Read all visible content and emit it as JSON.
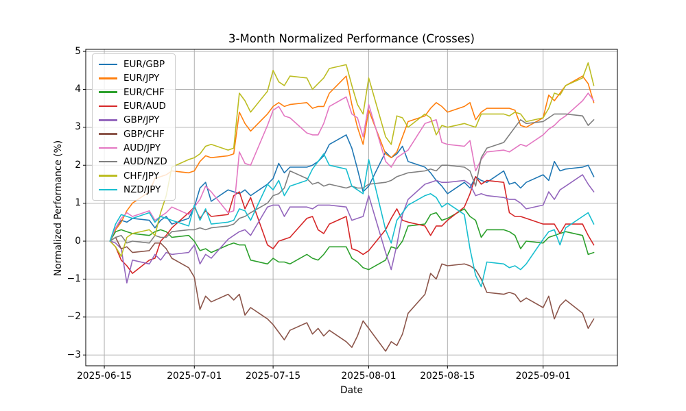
{
  "chart_data": {
    "type": "line",
    "title": "3-Month Normalized Performance (Crosses)",
    "xlabel": "Date",
    "ylabel": "Normalized Performance (%)",
    "grid": true,
    "legend_position": "upper left",
    "colors": {
      "background": "#ffffff",
      "grid": "#b0b0b0",
      "spine": "#000000",
      "legend_border": "#cccccc"
    },
    "x_origin_date": "2025-06-15",
    "xlim_days": [
      -3.3,
      91.2
    ],
    "ylim": [
      -3.285,
      5.055
    ],
    "x_ticks": [
      "2025-06-15",
      "2025-07-01",
      "2025-07-15",
      "2025-08-01",
      "2025-08-15",
      "2025-09-01"
    ],
    "x_tick_labels": [
      "2025-06-15",
      "2025-07-01",
      "2025-07-15",
      "2025-08-01",
      "2025-08-15",
      "2025-09-01"
    ],
    "y_ticks": [
      -3,
      -2,
      -1,
      0,
      1,
      2,
      3,
      4,
      5
    ],
    "y_tick_labels": [
      "−3",
      "−2",
      "−1",
      "0",
      "1",
      "2",
      "3",
      "4",
      "5"
    ],
    "dates": [
      "2025-06-16",
      "2025-06-17",
      "2025-06-18",
      "2025-06-19",
      "2025-06-20",
      "2025-06-23",
      "2025-06-24",
      "2025-06-25",
      "2025-06-26",
      "2025-06-27",
      "2025-06-30",
      "2025-07-01",
      "2025-07-02",
      "2025-07-03",
      "2025-07-04",
      "2025-07-07",
      "2025-07-08",
      "2025-07-09",
      "2025-07-10",
      "2025-07-11",
      "2025-07-14",
      "2025-07-15",
      "2025-07-16",
      "2025-07-17",
      "2025-07-18",
      "2025-07-21",
      "2025-07-22",
      "2025-07-23",
      "2025-07-24",
      "2025-07-25",
      "2025-07-28",
      "2025-07-29",
      "2025-07-30",
      "2025-07-31",
      "2025-08-01",
      "2025-08-04",
      "2025-08-05",
      "2025-08-06",
      "2025-08-07",
      "2025-08-08",
      "2025-08-11",
      "2025-08-12",
      "2025-08-13",
      "2025-08-14",
      "2025-08-15",
      "2025-08-18",
      "2025-08-19",
      "2025-08-20",
      "2025-08-21",
      "2025-08-22",
      "2025-08-25",
      "2025-08-26",
      "2025-08-27",
      "2025-08-28",
      "2025-08-29",
      "2025-09-01",
      "2025-09-02",
      "2025-09-03",
      "2025-09-04",
      "2025-09-05",
      "2025-09-08",
      "2025-09-09",
      "2025-09-10"
    ],
    "series": [
      {
        "name": "EUR/GBP",
        "color": "#1f77b4",
        "values": [
          0,
          0.35,
          0.55,
          0.5,
          0.6,
          0.55,
          0.35,
          0.55,
          0.65,
          0.45,
          0.6,
          0.9,
          1.4,
          1.55,
          1.05,
          1.35,
          1.3,
          1.25,
          1.35,
          1.2,
          1.5,
          1.65,
          2.05,
          1.8,
          1.95,
          1.95,
          2.0,
          2.1,
          2.25,
          2.55,
          2.8,
          2.45,
          1.9,
          1.3,
          1.45,
          2.35,
          2.2,
          2.3,
          2.5,
          2.1,
          1.95,
          1.8,
          1.6,
          1.45,
          1.25,
          1.55,
          1.4,
          1.7,
          1.6,
          1.55,
          1.85,
          1.5,
          1.55,
          1.4,
          1.55,
          1.75,
          1.6,
          2.1,
          1.85,
          1.9,
          1.95,
          2.0,
          1.7
        ]
      },
      {
        "name": "EUR/JPY",
        "color": "#ff7f0e",
        "values": [
          0,
          0.3,
          0.5,
          0.8,
          1.0,
          1.3,
          1.65,
          1.7,
          1.75,
          1.85,
          1.8,
          1.85,
          2.1,
          2.25,
          2.2,
          2.25,
          2.3,
          3.4,
          3.1,
          2.9,
          3.35,
          3.55,
          3.65,
          3.55,
          3.6,
          3.65,
          3.5,
          3.55,
          3.55,
          3.9,
          4.35,
          3.6,
          3.0,
          2.55,
          3.45,
          2.3,
          2.2,
          2.35,
          2.75,
          3.15,
          3.3,
          3.5,
          3.65,
          3.55,
          3.4,
          3.55,
          3.65,
          3.2,
          3.4,
          3.5,
          3.5,
          3.5,
          3.45,
          3.05,
          3.0,
          3.25,
          3.85,
          3.7,
          3.9,
          4.1,
          4.35,
          4.15,
          3.65
        ]
      },
      {
        "name": "EUR/CHF",
        "color": "#2ca02c",
        "values": [
          0,
          0.25,
          0.3,
          0.25,
          0.2,
          0.15,
          0.25,
          0.3,
          0.25,
          0.1,
          0.15,
          0.0,
          -0.25,
          -0.2,
          -0.3,
          -0.1,
          -0.05,
          -0.1,
          -0.1,
          -0.5,
          -0.6,
          -0.45,
          -0.55,
          -0.55,
          -0.6,
          -0.35,
          -0.45,
          -0.5,
          -0.35,
          -0.15,
          -0.15,
          -0.45,
          -0.55,
          -0.7,
          -0.75,
          -0.5,
          -0.15,
          -0.2,
          0.0,
          0.4,
          0.45,
          0.7,
          0.75,
          0.55,
          0.6,
          0.85,
          0.65,
          0.55,
          0.1,
          0.3,
          0.3,
          0.25,
          0.15,
          -0.2,
          0.0,
          -0.05,
          0.1,
          0.15,
          0.2,
          0.25,
          0.15,
          -0.35,
          -0.3
        ]
      },
      {
        "name": "EUR/AUD",
        "color": "#d62728",
        "values": [
          0,
          -0.15,
          -0.5,
          -0.65,
          -0.85,
          -0.5,
          -0.45,
          0.0,
          0.15,
          0.35,
          0.75,
          0.9,
          0.6,
          0.8,
          0.65,
          0.7,
          1.2,
          1.3,
          0.85,
          1.15,
          -0.1,
          -0.2,
          0.0,
          0.05,
          0.1,
          0.6,
          0.65,
          0.3,
          0.2,
          0.45,
          0.65,
          -0.2,
          -0.25,
          -0.35,
          -0.25,
          0.3,
          0.6,
          0.85,
          0.55,
          0.5,
          0.4,
          0.15,
          0.4,
          0.4,
          0.55,
          0.9,
          1.25,
          1.7,
          1.5,
          1.6,
          1.55,
          0.75,
          0.65,
          0.65,
          0.6,
          0.45,
          0.45,
          0.45,
          0.2,
          0.45,
          0.45,
          0.15,
          -0.1
        ]
      },
      {
        "name": "GBP/JPY",
        "color": "#9467bd",
        "values": [
          0,
          -0.05,
          -0.2,
          -1.1,
          -0.5,
          -0.6,
          -0.35,
          -0.5,
          -0.3,
          -0.35,
          -0.3,
          -0.1,
          -0.6,
          -0.35,
          -0.45,
          0.05,
          0.15,
          0.25,
          0.3,
          0.15,
          0.9,
          0.95,
          0.95,
          0.65,
          0.9,
          0.9,
          0.85,
          0.95,
          0.95,
          0.95,
          0.9,
          0.55,
          0.6,
          0.65,
          1.2,
          -0.3,
          -0.75,
          -0.1,
          0.7,
          1.1,
          1.5,
          1.55,
          1.6,
          1.55,
          1.55,
          1.6,
          1.5,
          1.2,
          1.25,
          1.2,
          1.15,
          1.1,
          1.1,
          1.0,
          0.85,
          0.95,
          1.3,
          1.1,
          1.35,
          1.45,
          1.75,
          1.5,
          1.3
        ]
      },
      {
        "name": "GBP/CHF",
        "color": "#8c564b",
        "values": [
          0,
          0.1,
          -0.2,
          -0.15,
          -0.3,
          -0.25,
          -0.05,
          -0.05,
          -0.2,
          -0.45,
          -0.7,
          -0.95,
          -1.8,
          -1.45,
          -1.6,
          -1.4,
          -1.55,
          -1.4,
          -1.95,
          -1.75,
          -2.05,
          -2.2,
          -2.4,
          -2.6,
          -2.35,
          -2.15,
          -2.45,
          -2.3,
          -2.5,
          -2.35,
          -2.65,
          -2.8,
          -2.5,
          -2.1,
          -2.3,
          -2.9,
          -2.65,
          -2.75,
          -2.45,
          -1.9,
          -1.4,
          -0.85,
          -1.0,
          -0.6,
          -0.65,
          -0.6,
          -0.65,
          -0.75,
          -1.0,
          -1.35,
          -1.4,
          -1.35,
          -1.4,
          -1.6,
          -1.5,
          -1.75,
          -1.45,
          -2.05,
          -1.7,
          -1.55,
          -1.9,
          -2.3,
          -2.05
        ]
      },
      {
        "name": "AUD/JPY",
        "color": "#e377c2",
        "values": [
          0,
          0.35,
          0.6,
          0.75,
          0.65,
          0.8,
          0.55,
          0.65,
          0.75,
          0.9,
          0.7,
          0.9,
          1.1,
          1.45,
          1.3,
          0.75,
          0.8,
          2.35,
          2.05,
          2.0,
          3.05,
          3.45,
          3.55,
          3.3,
          3.25,
          2.85,
          2.8,
          2.8,
          3.1,
          3.55,
          3.8,
          3.35,
          3.25,
          2.75,
          3.6,
          2.1,
          1.95,
          2.2,
          2.3,
          2.4,
          3.1,
          3.15,
          3.2,
          2.6,
          2.55,
          2.5,
          2.65,
          1.85,
          2.15,
          2.35,
          2.4,
          2.35,
          2.45,
          2.55,
          2.5,
          2.8,
          2.95,
          3.05,
          3.2,
          3.3,
          3.7,
          3.9,
          3.7
        ]
      },
      {
        "name": "AUD/NZD",
        "color": "#7f7f7f",
        "values": [
          0,
          0.1,
          0.15,
          -0.05,
          0.0,
          -0.05,
          0.15,
          0.1,
          0.1,
          0.25,
          0.3,
          0.3,
          0.35,
          0.3,
          0.35,
          0.4,
          0.45,
          0.6,
          0.65,
          0.75,
          1.0,
          1.2,
          1.25,
          1.4,
          1.85,
          1.65,
          1.5,
          1.55,
          1.45,
          1.5,
          1.4,
          1.45,
          1.4,
          1.4,
          1.5,
          1.55,
          1.6,
          1.7,
          1.75,
          1.8,
          1.85,
          1.9,
          1.85,
          2.0,
          2.0,
          1.95,
          1.85,
          1.45,
          2.2,
          2.45,
          2.6,
          2.8,
          3.0,
          3.2,
          3.1,
          3.15,
          3.25,
          3.35,
          3.35,
          3.35,
          3.3,
          3.05,
          3.2
        ]
      },
      {
        "name": "CHF/JPY",
        "color": "#bcbd22",
        "values": [
          0,
          -0.15,
          -0.4,
          0.1,
          0.2,
          0.3,
          0.15,
          0.75,
          1.2,
          1.95,
          2.15,
          2.2,
          2.3,
          2.5,
          2.55,
          2.4,
          2.45,
          3.9,
          3.7,
          3.4,
          3.95,
          4.5,
          4.2,
          4.1,
          4.35,
          4.3,
          4.0,
          4.15,
          4.3,
          4.55,
          4.65,
          4.1,
          3.6,
          3.35,
          4.3,
          2.75,
          2.55,
          3.3,
          3.25,
          3.0,
          3.35,
          3.25,
          2.8,
          3.05,
          3.0,
          3.1,
          3.05,
          3.0,
          3.35,
          3.35,
          3.35,
          3.3,
          3.4,
          3.35,
          3.15,
          3.25,
          3.5,
          3.9,
          3.85,
          4.1,
          4.3,
          4.7,
          4.1
        ]
      },
      {
        "name": "NZD/JPY",
        "color": "#17becf",
        "values": [
          0,
          0.45,
          0.7,
          0.65,
          0.6,
          0.75,
          0.5,
          0.65,
          0.6,
          0.55,
          0.4,
          0.95,
          0.55,
          0.85,
          0.45,
          0.5,
          0.55,
          0.85,
          0.8,
          0.55,
          1.5,
          1.35,
          1.6,
          1.2,
          1.45,
          1.6,
          1.9,
          2.1,
          2.3,
          2.0,
          1.9,
          1.45,
          1.35,
          1.25,
          2.15,
          0.3,
          -0.05,
          0.55,
          0.75,
          0.95,
          1.2,
          1.25,
          1.15,
          0.9,
          1.0,
          0.7,
          -0.2,
          -0.9,
          -1.2,
          -0.55,
          -0.6,
          -0.7,
          -0.65,
          -0.75,
          -0.6,
          0.05,
          0.25,
          0.3,
          -0.1,
          0.35,
          0.65,
          0.75,
          0.45
        ]
      }
    ]
  }
}
